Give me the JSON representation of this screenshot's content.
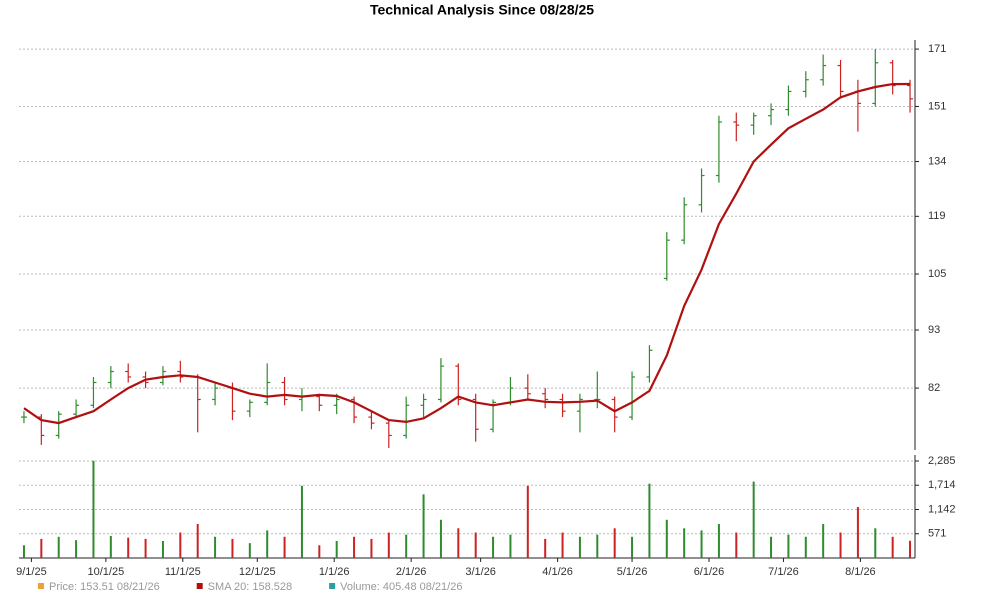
{
  "chart_data": [
    {
      "type": "ohlc",
      "title": "Technical Analysis Since 08/28/25",
      "x": [
        "8/29/25",
        "9/5/25",
        "9/12/25",
        "9/19/25",
        "9/26/25",
        "10/3/25",
        "10/10/25",
        "10/17/25",
        "10/24/25",
        "10/31/25",
        "11/7/25",
        "11/14/25",
        "11/21/25",
        "11/28/25",
        "12/5/25",
        "12/12/25",
        "12/19/25",
        "12/26/25",
        "1/2/26",
        "1/9/26",
        "1/16/26",
        "1/23/26",
        "1/30/26",
        "2/6/26",
        "2/13/26",
        "2/20/26",
        "2/27/26",
        "3/6/26",
        "3/13/26",
        "3/20/26",
        "3/27/26",
        "4/3/26",
        "4/10/26",
        "4/17/26",
        "4/24/26",
        "5/1/26",
        "5/8/26",
        "5/15/26",
        "5/22/26",
        "5/29/26",
        "6/5/26",
        "6/12/26",
        "6/19/26",
        "6/26/26",
        "7/3/26",
        "7/10/26",
        "7/17/26",
        "7/24/26",
        "7/31/26",
        "8/7/26",
        "8/14/26",
        "8/21/26"
      ],
      "open": [
        77,
        77,
        74,
        77.5,
        79,
        83,
        85,
        84,
        83,
        85,
        84,
        80,
        82,
        78,
        79.5,
        83,
        80,
        80.5,
        79,
        80,
        77,
        76,
        74,
        79,
        80,
        86,
        80,
        75,
        79.5,
        82,
        81,
        80,
        78,
        80,
        80,
        77,
        84,
        104,
        113,
        122,
        130,
        146,
        145,
        148,
        150,
        156,
        160,
        165,
        156,
        152,
        166,
        158
      ],
      "high": [
        78,
        77.5,
        78,
        80,
        84,
        86,
        86.5,
        85,
        86,
        87,
        84.5,
        83,
        83,
        80,
        86.5,
        84,
        82,
        81,
        81,
        80.5,
        78,
        76.5,
        80.5,
        81,
        87.5,
        86.5,
        81,
        80,
        84,
        84.5,
        82,
        81,
        81,
        85,
        80.5,
        85,
        90,
        115,
        124,
        132,
        148,
        149,
        149,
        152,
        158,
        163,
        169,
        167,
        160,
        171,
        167,
        160
      ],
      "low": [
        76,
        72.5,
        73.5,
        77,
        78.5,
        82,
        83,
        82,
        82.5,
        83,
        74.5,
        79,
        76.5,
        77,
        79,
        79,
        78,
        78,
        77.5,
        76,
        75,
        72,
        73.5,
        77,
        79.5,
        79,
        73,
        74.5,
        79,
        80,
        78.5,
        77,
        74.5,
        78.5,
        74.5,
        76.5,
        83,
        103.5,
        112,
        120,
        128,
        140,
        142,
        145,
        148,
        154,
        158,
        154,
        143,
        151,
        155,
        149
      ],
      "close": [
        77,
        74,
        77.5,
        79,
        83,
        85,
        84,
        83,
        85,
        84,
        80,
        82,
        78,
        79.5,
        83,
        80,
        80.5,
        79,
        80,
        77,
        76,
        74,
        79,
        80,
        86,
        80,
        75,
        79.5,
        82,
        81,
        80,
        78,
        80,
        80,
        77,
        84,
        89,
        113,
        122,
        130,
        146,
        145,
        148,
        150,
        156,
        160,
        165,
        156,
        152,
        166,
        158,
        153.51
      ],
      "up_color": "#2e8b2e",
      "down_color": "#cc2222",
      "sma": {
        "color": "#b01010",
        "values": [
          78.5,
          76.5,
          76,
          77,
          78,
          80,
          82,
          83.5,
          84,
          84.3,
          84,
          83,
          82,
          81,
          80.5,
          80.8,
          80.5,
          80.8,
          80.6,
          79.5,
          78,
          76.5,
          76.2,
          76.8,
          78.5,
          80.5,
          79.5,
          79,
          79.5,
          80,
          79.6,
          79.5,
          79.6,
          79.8,
          78,
          79.5,
          81.5,
          88,
          98,
          106,
          117,
          125,
          134,
          139,
          144,
          147,
          150,
          154,
          156,
          157.5,
          158.5,
          158.528
        ]
      },
      "log_scale": true,
      "ylim": [
        71.7,
        174.4
      ],
      "yticks": [
        82,
        93,
        105,
        119,
        134,
        151,
        171
      ],
      "xlim": [
        "8/27/25",
        "8/23/26"
      ],
      "xticks": [
        "9/1/25",
        "10/1/25",
        "11/1/25",
        "12/1/25",
        "1/1/26",
        "2/1/26",
        "3/1/26",
        "4/1/26",
        "5/1/26",
        "6/1/26",
        "7/1/26",
        "8/1/26"
      ],
      "grid": true,
      "legend": [
        {
          "text": "Price: 153.51  08/21/26",
          "color": "#e8a33c"
        },
        {
          "text": "SMA 20: 158.528",
          "color": "#b01010"
        },
        {
          "text": "Volume: 405.48  08/21/26",
          "color": "#2aa198"
        }
      ]
    },
    {
      "type": "volume",
      "values": [
        300,
        450,
        500,
        420,
        2290,
        520,
        480,
        450,
        400,
        600,
        800,
        500,
        450,
        350,
        650,
        500,
        1700,
        300,
        400,
        500,
        450,
        600,
        550,
        1500,
        900,
        700,
        600,
        500,
        550,
        1700,
        450,
        600,
        500,
        550,
        700,
        500,
        1750,
        900,
        700,
        650,
        800,
        600,
        1800,
        500,
        550,
        500,
        800,
        600,
        1200,
        700,
        500,
        405.48
      ],
      "ylim": [
        0,
        2426
      ],
      "yticks": [
        {
          "value": 571,
          "label": "571"
        },
        {
          "value": 1142,
          "label": "1,142"
        },
        {
          "value": 1714,
          "label": "1,714"
        },
        {
          "value": 2285,
          "label": "2,285"
        }
      ],
      "grid": true
    }
  ]
}
